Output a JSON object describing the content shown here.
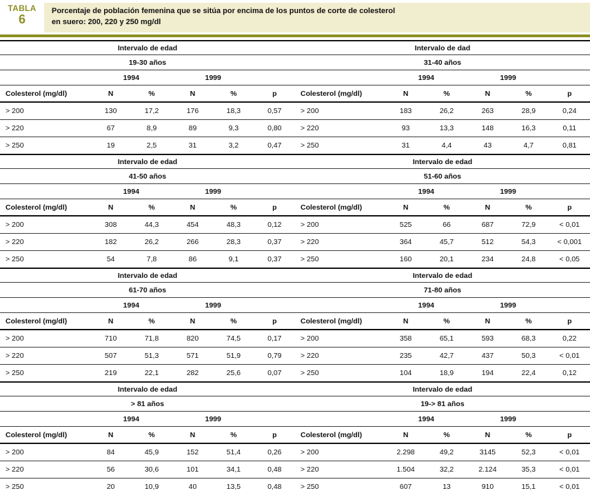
{
  "colors": {
    "accent_olive": "#8D9023",
    "title_bg": "#F1EDCF",
    "bottom_rule": "#5E5E5E"
  },
  "header": {
    "badge_label": "TABLA",
    "badge_number": "6",
    "title_line1": "Porcentaje de población femenina que se sitúa por encima de los puntos de corte de colesterol",
    "title_line2": "en suero: 200, 220 y 250 mg/dl"
  },
  "years": [
    "1994",
    "1999"
  ],
  "columns": {
    "label": "Colesterol (mg/dl)",
    "n": "N",
    "pct": "%",
    "p": "p"
  },
  "blocks": [
    {
      "left": {
        "interval_label": "Intervalo de edad",
        "age": "19-30 años",
        "rows": [
          {
            "label": "> 200",
            "values": [
              "130",
              "17,2",
              "176",
              "18,3",
              "0,57"
            ]
          },
          {
            "label": "> 220",
            "values": [
              "67",
              "8,9",
              "89",
              "9,3",
              "0,80"
            ]
          },
          {
            "label": "> 250",
            "values": [
              "19",
              "2,5",
              "31",
              "3,2",
              "0,47"
            ]
          }
        ]
      },
      "right": {
        "interval_label": "Intervalo de dad",
        "age": "31-40 años",
        "rows": [
          {
            "label": "> 200",
            "values": [
              "183",
              "26,2",
              "263",
              "28,9",
              "0,24"
            ]
          },
          {
            "label": "> 220",
            "values": [
              "93",
              "13,3",
              "148",
              "16,3",
              "0,11"
            ]
          },
          {
            "label": "> 250",
            "values": [
              "31",
              "4,4",
              "43",
              "4,7",
              "0,81"
            ]
          }
        ]
      }
    },
    {
      "left": {
        "interval_label": "Intervalo de edad",
        "age": "41-50 años",
        "rows": [
          {
            "label": "> 200",
            "values": [
              "308",
              "44,3",
              "454",
              "48,3",
              "0,12"
            ]
          },
          {
            "label": "> 220",
            "values": [
              "182",
              "26,2",
              "266",
              "28,3",
              "0,37"
            ]
          },
          {
            "label": "> 250",
            "values": [
              "54",
              "7,8",
              "86",
              "9,1",
              "0,37"
            ]
          }
        ]
      },
      "right": {
        "interval_label": "Intervalo de edad",
        "age": "51-60 años",
        "rows": [
          {
            "label": "> 200",
            "values": [
              "525",
              "66",
              "687",
              "72,9",
              "< 0,01"
            ]
          },
          {
            "label": "> 220",
            "values": [
              "364",
              "45,7",
              "512",
              "54,3",
              "< 0,001"
            ]
          },
          {
            "label": "> 250",
            "values": [
              "160",
              "20,1",
              "234",
              "24,8",
              "< 0,05"
            ]
          }
        ]
      }
    },
    {
      "left": {
        "interval_label": "Intervalo de edad",
        "age": "61-70 años",
        "rows": [
          {
            "label": "> 200",
            "values": [
              "710",
              "71,8",
              "820",
              "74,5",
              "0,17"
            ]
          },
          {
            "label": "> 220",
            "values": [
              "507",
              "51,3",
              "571",
              "51,9",
              "0,79"
            ]
          },
          {
            "label": "> 250",
            "values": [
              "219",
              "22,1",
              "282",
              "25,6",
              "0,07"
            ]
          }
        ]
      },
      "right": {
        "interval_label": "Intervalo de edad",
        "age": "71-80 años",
        "rows": [
          {
            "label": "> 200",
            "values": [
              "358",
              "65,1",
              "593",
              "68,3",
              "0,22"
            ]
          },
          {
            "label": "> 220",
            "values": [
              "235",
              "42,7",
              "437",
              "50,3",
              "< 0,01"
            ]
          },
          {
            "label": "> 250",
            "values": [
              "104",
              "18,9",
              "194",
              "22,4",
              "0,12"
            ]
          }
        ]
      }
    },
    {
      "left": {
        "interval_label": "Intervalo de edad",
        "age": "> 81 años",
        "rows": [
          {
            "label": "> 200",
            "values": [
              "84",
              "45,9",
              "152",
              "51,4",
              "0,26"
            ]
          },
          {
            "label": "> 220",
            "values": [
              "56",
              "30,6",
              "101",
              "34,1",
              "0,48"
            ]
          },
          {
            "label": "> 250",
            "values": [
              "20",
              "10,9",
              "40",
              "13,5",
              "0,48"
            ]
          }
        ]
      },
      "right": {
        "interval_label": "Intervalo de edad",
        "age": "19-> 81 años",
        "rows": [
          {
            "label": "> 200",
            "values": [
              "2.298",
              "49,2",
              "3145",
              "52,3",
              "< 0,01"
            ]
          },
          {
            "label": "> 220",
            "values": [
              "1.504",
              "32,2",
              "2.124",
              "35,3",
              "< 0,01"
            ]
          },
          {
            "label": "> 250",
            "values": [
              "607",
              "13",
              "910",
              "15,1",
              "< 0,01"
            ]
          }
        ]
      }
    }
  ]
}
